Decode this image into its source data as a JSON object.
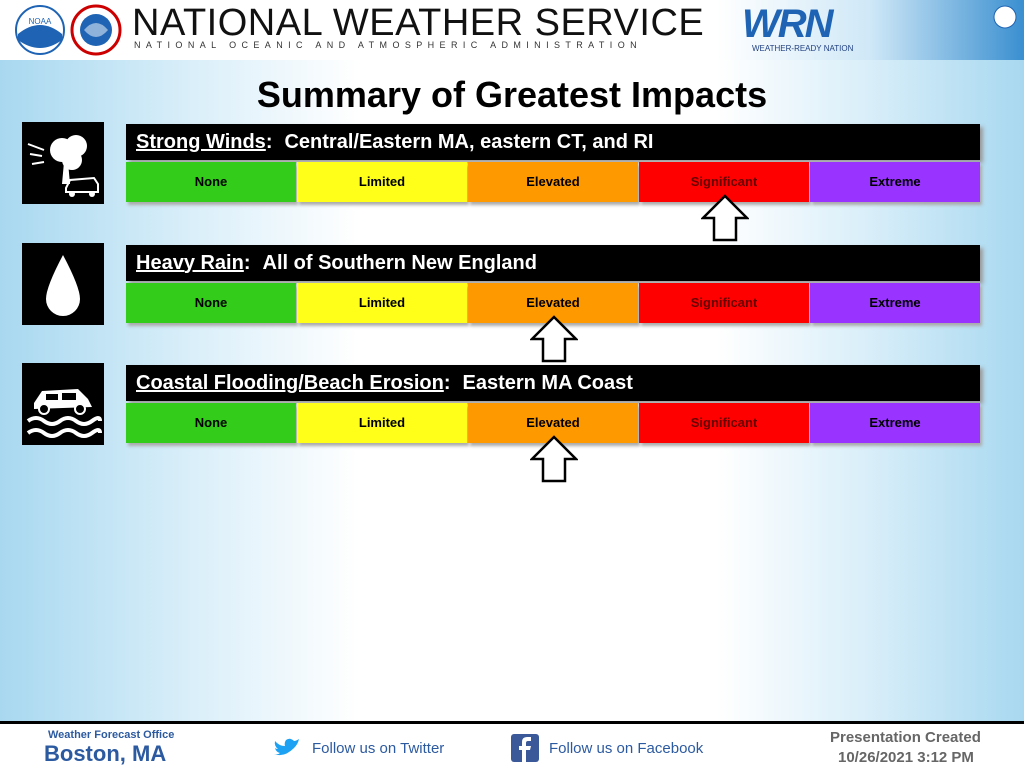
{
  "header": {
    "noaa_logo": "NOAA",
    "title": "NATIONAL WEATHER SERVICE",
    "subtitle": "NATIONAL OCEANIC AND ATMOSPHERIC ADMINISTRATION",
    "wrn_logo": "WRN",
    "wrn_caption": "WEATHER-READY NATION"
  },
  "title": "Summary of Greatest Impacts",
  "levels": [
    {
      "name": "None",
      "color": "#33cc1a"
    },
    {
      "name": "Limited",
      "color": "#ffff1a"
    },
    {
      "name": "Elevated",
      "color": "#ff9900"
    },
    {
      "name": "Significant",
      "color": "#ff0000"
    },
    {
      "name": "Extreme",
      "color": "#9933ff"
    }
  ],
  "rows": [
    {
      "hazard": "Strong Winds",
      "separator": ":",
      "area": "Central/Eastern MA, eastern CT, and RI",
      "icon": "wind",
      "impact": "Significant"
    },
    {
      "hazard": "Heavy Rain",
      "separator": ":",
      "area": "All of Southern New England",
      "icon": "rain",
      "impact": "Elevated"
    },
    {
      "hazard": "Coastal Flooding/Beach Erosion",
      "separator": ":",
      "area": "Eastern MA Coast",
      "icon": "flood",
      "impact": "Elevated"
    }
  ],
  "footer": {
    "office_label": "Weather Forecast Office",
    "office": "Boston, MA",
    "twitter": "Follow us on Twitter",
    "facebook": "Follow us on Facebook",
    "created_label": "Presentation Created",
    "created": "10/26/2021 3:12 PM"
  }
}
